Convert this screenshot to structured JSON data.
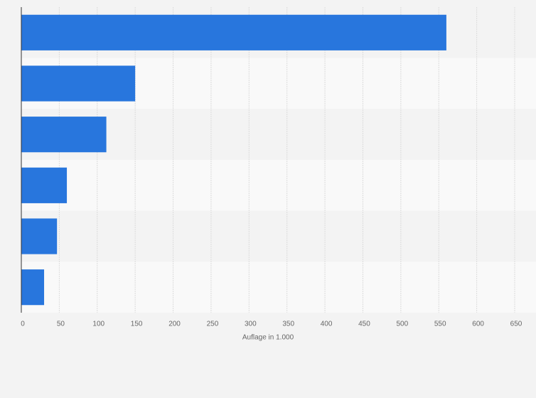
{
  "chart_data": {
    "type": "bar",
    "orientation": "horizontal",
    "categories": [
      null,
      null,
      null,
      null,
      null,
      null
    ],
    "values": [
      560,
      150,
      112,
      60,
      47,
      30
    ],
    "color": "#2876dd",
    "x_label": "Auflage in 1.000",
    "xlim": [
      0,
      650
    ],
    "xticks": [
      0,
      50,
      100,
      150,
      200,
      250,
      300,
      350,
      400,
      450,
      500,
      550,
      600,
      650
    ],
    "grid": true
  }
}
